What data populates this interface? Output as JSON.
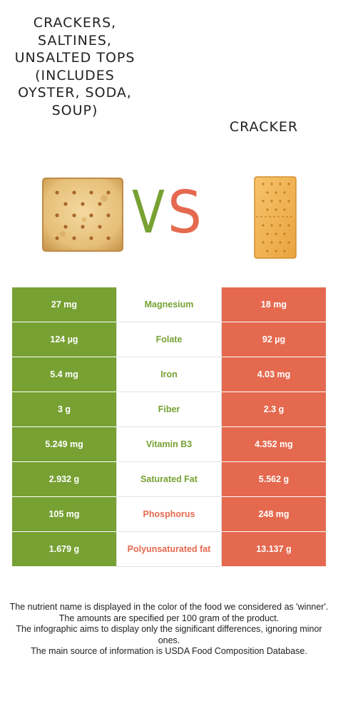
{
  "header": {
    "left_food_title": "CRACKERS, SALTINES, UNSALTED TOPS (INCLUDES OYSTER, SODA, SOUP)",
    "right_food_title": "CRACKER",
    "vs_label": "VS"
  },
  "colors": {
    "left_food": "#77a133",
    "right_food": "#e5694f"
  },
  "rows": [
    {
      "nutrient": "Magnesium",
      "left": "27 mg",
      "right": "18 mg",
      "winner": "left"
    },
    {
      "nutrient": "Folate",
      "left": "124 µg",
      "right": "92 µg",
      "winner": "left"
    },
    {
      "nutrient": "Iron",
      "left": "5.4 mg",
      "right": "4.03 mg",
      "winner": "left"
    },
    {
      "nutrient": "Fiber",
      "left": "3 g",
      "right": "2.3 g",
      "winner": "left"
    },
    {
      "nutrient": "Vitamin B3",
      "left": "5.249 mg",
      "right": "4.352 mg",
      "winner": "left"
    },
    {
      "nutrient": "Saturated Fat",
      "left": "2.932 g",
      "right": "5.562 g",
      "winner": "left"
    },
    {
      "nutrient": "Phosphorus",
      "left": "105 mg",
      "right": "248 mg",
      "winner": "right"
    },
    {
      "nutrient": "Polyunsaturated fat",
      "left": "1.679 g",
      "right": "13.137 g",
      "winner": "right"
    }
  ],
  "footnote": {
    "line1": "The nutrient name is displayed in the color of the food we considered as 'winner'.",
    "line2": "The amounts are specified per 100 gram of the product.",
    "line3": "The infographic aims to display only the significant differences, ignoring minor ones.",
    "line4": "The main source of information is USDA Food Composition Database."
  }
}
